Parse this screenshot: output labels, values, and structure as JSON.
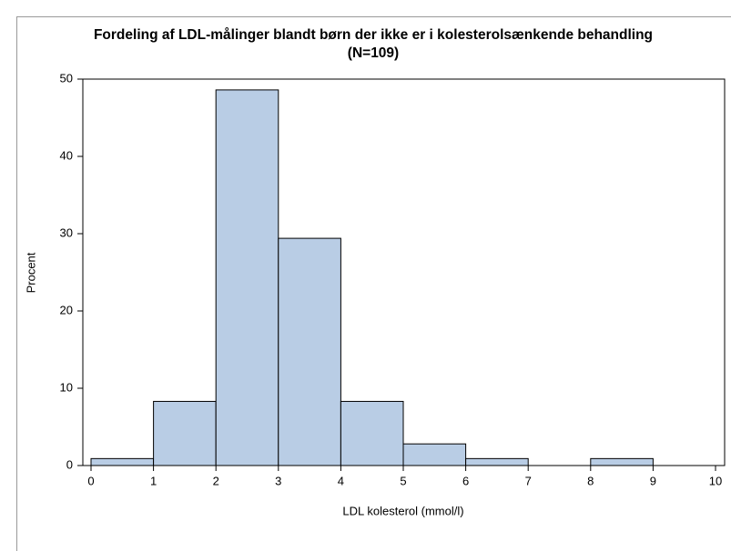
{
  "chart_data": {
    "type": "histogram",
    "title": "Fordeling af LDL-målinger blandt børn der ikke er i kolesterolsænkende behandling",
    "subtitle": "(N=109)",
    "x_label": "LDL kolesterol (mmol/l)",
    "y_label": "Procent",
    "bins": [
      0,
      1,
      2,
      3,
      4,
      5,
      6,
      7,
      8,
      9,
      10
    ],
    "values": [
      0.9,
      8.3,
      48.6,
      29.4,
      8.3,
      2.8,
      0.9,
      0,
      0.9,
      0
    ],
    "color": "#b9cde5",
    "xlim": [
      0,
      10
    ],
    "xticks": [
      0,
      1,
      2,
      3,
      4,
      5,
      6,
      7,
      8,
      9,
      10
    ],
    "ylim": [
      0,
      50
    ],
    "yticks": [
      0,
      10,
      20,
      30,
      40,
      50
    ]
  }
}
